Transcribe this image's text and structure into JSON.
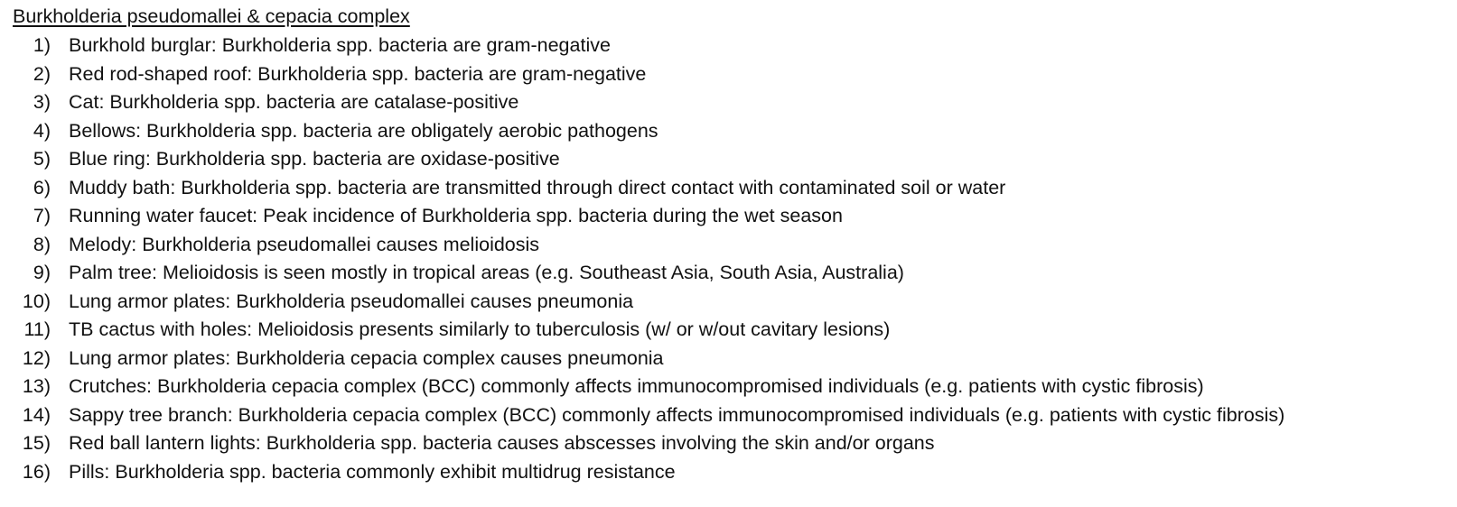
{
  "document": {
    "title": "Burkholderia pseudomallei & cepacia complex",
    "items": [
      {
        "number": "1)",
        "text": "Burkhold burglar: Burkholderia spp. bacteria are gram-negative"
      },
      {
        "number": "2)",
        "text": "Red rod-shaped roof: Burkholderia spp. bacteria are gram-negative"
      },
      {
        "number": "3)",
        "text": "Cat: Burkholderia spp. bacteria are catalase-positive"
      },
      {
        "number": "4)",
        "text": "Bellows: Burkholderia spp. bacteria are obligately aerobic pathogens"
      },
      {
        "number": "5)",
        "text": "Blue ring: Burkholderia spp. bacteria are oxidase-positive"
      },
      {
        "number": "6)",
        "text": "Muddy bath: Burkholderia spp. bacteria are transmitted through direct contact with contaminated soil or water"
      },
      {
        "number": "7)",
        "text": "Running water faucet: Peak incidence of Burkholderia spp. bacteria during the wet season"
      },
      {
        "number": "8)",
        "text": "Melody: Burkholderia pseudomallei causes melioidosis"
      },
      {
        "number": "9)",
        "text": "Palm tree: Melioidosis is seen mostly in tropical areas (e.g. Southeast Asia, South Asia, Australia)"
      },
      {
        "number": "10)",
        "text": "Lung armor plates: Burkholderia pseudomallei causes pneumonia"
      },
      {
        "number": "11)",
        "text": "TB cactus with holes: Melioidosis presents similarly to tuberculosis (w/ or w/out cavitary lesions)"
      },
      {
        "number": "12)",
        "text": "Lung armor plates: Burkholderia cepacia complex causes pneumonia"
      },
      {
        "number": "13)",
        "text": "Crutches: Burkholderia cepacia complex (BCC) commonly affects immunocompromised individuals (e.g. patients with cystic fibrosis)"
      },
      {
        "number": "14)",
        "text": "Sappy tree branch: Burkholderia cepacia complex (BCC) commonly affects immunocompromised individuals (e.g. patients with cystic fibrosis)"
      },
      {
        "number": "15)",
        "text": "Red ball lantern lights: Burkholderia spp. bacteria causes abscesses involving the skin and/or organs"
      },
      {
        "number": "16)",
        "text": "Pills: Burkholderia spp. bacteria commonly exhibit multidrug resistance"
      }
    ]
  }
}
